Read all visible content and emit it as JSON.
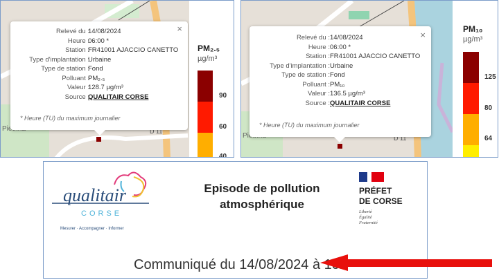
{
  "popups": [
    {
      "rows": [
        {
          "label": "Relevé du :",
          "value": "14/08/2024"
        },
        {
          "label": "Heure :",
          "value": "06:00 *"
        },
        {
          "label": "Station :",
          "value": "FR41001 AJACCIO CANETTO"
        },
        {
          "label": "Type d'implantation :",
          "value": "Urbaine"
        },
        {
          "label": "Type de station :",
          "value": "Fond"
        },
        {
          "label": "Polluant :",
          "value": "PM₂.₅"
        },
        {
          "label": "Valeur :",
          "value": "128.7 µg/m³"
        },
        {
          "label": "Source :",
          "value": "QUALITAIR CORSE"
        }
      ],
      "note": "* Heure (TU) du maximum journalier",
      "close": "×"
    },
    {
      "rows": [
        {
          "label": "Relevé du :",
          "value": "14/08/2024"
        },
        {
          "label": "Heure :",
          "value": "06:00 *"
        },
        {
          "label": "Station :",
          "value": "FR41001 AJACCIO CANETTO"
        },
        {
          "label": "Type d'implantation :",
          "value": "Urbaine"
        },
        {
          "label": "Type de station :",
          "value": "Fond"
        },
        {
          "label": "Polluant :",
          "value": "PM₁₀"
        },
        {
          "label": "Valeur :",
          "value": "136.5 µg/m³"
        },
        {
          "label": "Source :",
          "value": "QUALITAIR CORSE"
        }
      ],
      "note": "* Heure (TU) du maximum journalier",
      "close": "×"
    }
  ],
  "legends": [
    {
      "title": "PM₂.₅",
      "unit": "µg/m³",
      "thresholds": [
        "90",
        "60",
        "40"
      ],
      "colors": [
        "#8b0000",
        "#ff1a00",
        "#ffae00"
      ]
    },
    {
      "title": "PM₁₀",
      "unit": "µg/m³",
      "thresholds": [
        "125",
        "80",
        "64"
      ],
      "colors": [
        "#8b0000",
        "#ff1a00",
        "#ffae00",
        "#ffee00"
      ]
    }
  ],
  "map_labels": {
    "place": "Pietrina",
    "road": "D 11"
  },
  "banner": {
    "logo_name": "qualitair",
    "logo_sub": "CORSE",
    "logo_tagline": "Mesurer · Accompagner · Informer",
    "title_line1": "Episode de pollution",
    "title_line2": "atmosphérique",
    "prefet_line1": "PRÉFET",
    "prefet_line2": "DE CORSE",
    "motto": [
      "Liberté",
      "Égalité",
      "Fraternité"
    ],
    "communique": "Communiqué du 14/08/2024 à 10h",
    "arrow_color": "#e8100c"
  }
}
